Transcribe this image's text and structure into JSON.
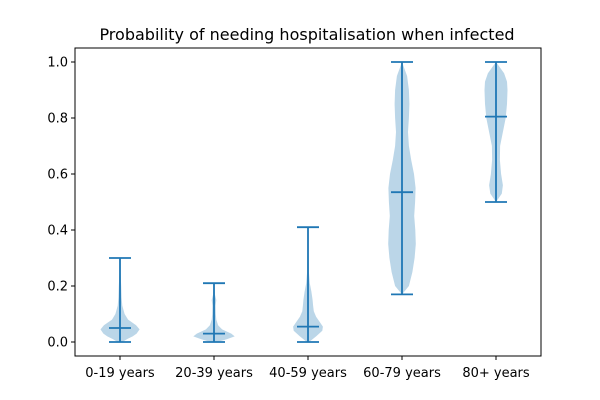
{
  "chart_data": {
    "type": "violin",
    "title": "Probability of needing hospitalisation when infected",
    "xlabel": "",
    "ylabel": "",
    "categories": [
      "0-19 years",
      "20-39 years",
      "40-59 years",
      "60-79 years",
      "80+ years"
    ],
    "ylim": [
      -0.05,
      1.05
    ],
    "yticks": [
      0.0,
      0.2,
      0.4,
      0.6,
      0.8,
      1.0
    ],
    "ytick_labels": [
      "0.0",
      "0.2",
      "0.4",
      "0.6",
      "0.8",
      "1.0"
    ],
    "grid": false,
    "legend": "none",
    "colors": {
      "body": "#1f77b4",
      "body_alpha": 0.3,
      "line": "#1f77b4"
    },
    "violins": [
      {
        "category": "0-19 years",
        "min": 0.0,
        "mean": 0.05,
        "max": 0.3,
        "density": [
          [
            0.0,
            0.1
          ],
          [
            0.01,
            0.3
          ],
          [
            0.02,
            0.55
          ],
          [
            0.03,
            0.72
          ],
          [
            0.045,
            0.85
          ],
          [
            0.06,
            0.7
          ],
          [
            0.08,
            0.35
          ],
          [
            0.1,
            0.2
          ],
          [
            0.13,
            0.1
          ],
          [
            0.16,
            0.07
          ],
          [
            0.2,
            0.05
          ],
          [
            0.25,
            0.02
          ],
          [
            0.3,
            0.0
          ]
        ]
      },
      {
        "category": "20-39 years",
        "min": 0.0,
        "mean": 0.03,
        "max": 0.21,
        "density": [
          [
            0.0,
            0.15
          ],
          [
            0.01,
            0.55
          ],
          [
            0.02,
            0.9
          ],
          [
            0.03,
            0.75
          ],
          [
            0.045,
            0.35
          ],
          [
            0.06,
            0.18
          ],
          [
            0.08,
            0.1
          ],
          [
            0.1,
            0.08
          ],
          [
            0.13,
            0.07
          ],
          [
            0.15,
            0.1
          ],
          [
            0.17,
            0.04
          ],
          [
            0.21,
            0.0
          ]
        ]
      },
      {
        "category": "40-59 years",
        "min": 0.0,
        "mean": 0.055,
        "max": 0.41,
        "density": [
          [
            0.0,
            0.05
          ],
          [
            0.02,
            0.35
          ],
          [
            0.04,
            0.62
          ],
          [
            0.055,
            0.65
          ],
          [
            0.07,
            0.52
          ],
          [
            0.09,
            0.35
          ],
          [
            0.11,
            0.25
          ],
          [
            0.13,
            0.22
          ],
          [
            0.15,
            0.2
          ],
          [
            0.18,
            0.15
          ],
          [
            0.21,
            0.08
          ],
          [
            0.25,
            0.04
          ],
          [
            0.32,
            0.02
          ],
          [
            0.41,
            0.0
          ]
        ]
      },
      {
        "category": "60-79 years",
        "min": 0.17,
        "mean": 0.535,
        "max": 1.0,
        "density": [
          [
            0.17,
            0.0
          ],
          [
            0.2,
            0.3
          ],
          [
            0.25,
            0.45
          ],
          [
            0.3,
            0.55
          ],
          [
            0.35,
            0.6
          ],
          [
            0.4,
            0.58
          ],
          [
            0.45,
            0.53
          ],
          [
            0.5,
            0.57
          ],
          [
            0.55,
            0.59
          ],
          [
            0.6,
            0.52
          ],
          [
            0.65,
            0.4
          ],
          [
            0.7,
            0.3
          ],
          [
            0.75,
            0.26
          ],
          [
            0.8,
            0.3
          ],
          [
            0.85,
            0.32
          ],
          [
            0.9,
            0.3
          ],
          [
            0.95,
            0.22
          ],
          [
            1.0,
            0.0
          ]
        ]
      },
      {
        "category": "80+ years",
        "min": 0.5,
        "mean": 0.805,
        "max": 1.0,
        "density": [
          [
            0.5,
            0.0
          ],
          [
            0.53,
            0.25
          ],
          [
            0.56,
            0.3
          ],
          [
            0.6,
            0.22
          ],
          [
            0.65,
            0.17
          ],
          [
            0.7,
            0.18
          ],
          [
            0.75,
            0.3
          ],
          [
            0.8,
            0.42
          ],
          [
            0.85,
            0.48
          ],
          [
            0.9,
            0.5
          ],
          [
            0.93,
            0.48
          ],
          [
            0.96,
            0.35
          ],
          [
            1.0,
            0.0
          ]
        ]
      }
    ]
  }
}
